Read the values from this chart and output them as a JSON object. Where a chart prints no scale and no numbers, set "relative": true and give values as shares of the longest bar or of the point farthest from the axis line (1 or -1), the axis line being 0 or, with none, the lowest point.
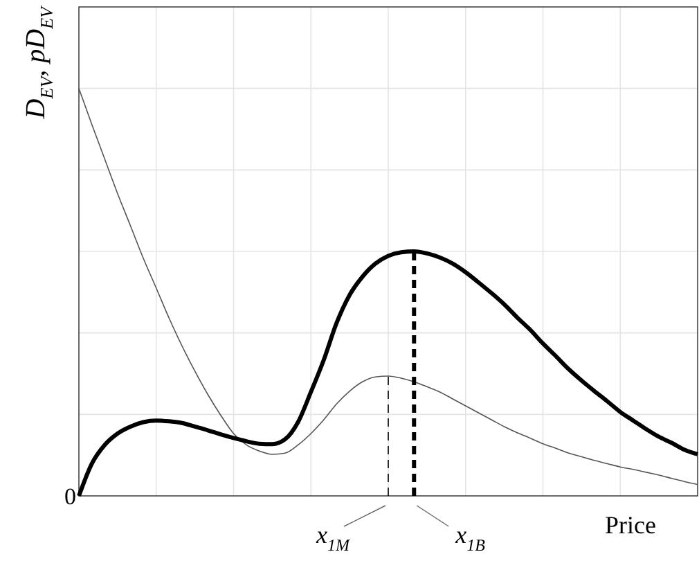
{
  "chart_data": {
    "type": "line",
    "relative": true,
    "ylabel": "D$_{EV}$, pD$_{EV}$",
    "xlabel": "Price",
    "grid": true,
    "marker": "none",
    "line_style": "solid",
    "annotations": [
      "0",
      "x$_{1M}$",
      "x$_{1B}$"
    ],
    "categories": [
      null,
      null,
      null,
      null,
      null,
      null,
      null,
      null,
      null,
      null,
      null,
      null,
      null,
      null,
      null,
      null,
      null,
      null,
      null,
      null,
      null,
      null,
      null,
      null,
      null,
      null,
      null,
      null,
      null,
      null,
      null,
      null,
      null,
      null,
      null,
      null,
      null,
      null,
      null,
      null,
      null,
      null,
      null,
      null,
      null,
      null,
      null,
      null,
      null
    ],
    "series": [
      {
        "color": "#555555",
        "values": [
          1.0,
          0.912,
          0.827,
          0.742,
          0.663,
          0.583,
          0.51,
          0.436,
          0.368,
          0.306,
          0.249,
          0.198,
          0.153,
          0.125,
          0.11,
          0.102,
          0.105,
          0.125,
          0.153,
          0.187,
          0.226,
          0.257,
          0.28,
          0.292,
          0.294,
          0.289,
          0.28,
          0.268,
          0.255,
          0.238,
          0.221,
          0.204,
          0.187,
          0.17,
          0.155,
          0.142,
          0.128,
          0.117,
          0.105,
          0.096,
          0.087,
          0.079,
          0.071,
          0.065,
          0.058,
          0.051,
          0.043,
          0.035,
          0.028
        ]
      },
      {
        "color": "#000000",
        "values": [
          0,
          0.079,
          0.125,
          0.153,
          0.17,
          0.181,
          0.185,
          0.183,
          0.179,
          0.17,
          0.161,
          0.151,
          0.142,
          0.134,
          0.128,
          0.127,
          0.139,
          0.181,
          0.255,
          0.334,
          0.425,
          0.493,
          0.538,
          0.57,
          0.589,
          0.598,
          0.6,
          0.595,
          0.585,
          0.57,
          0.549,
          0.524,
          0.498,
          0.47,
          0.438,
          0.408,
          0.374,
          0.343,
          0.311,
          0.283,
          0.257,
          0.232,
          0.206,
          0.185,
          0.164,
          0.145,
          0.13,
          0.113,
          0.102
        ]
      }
    ]
  }
}
